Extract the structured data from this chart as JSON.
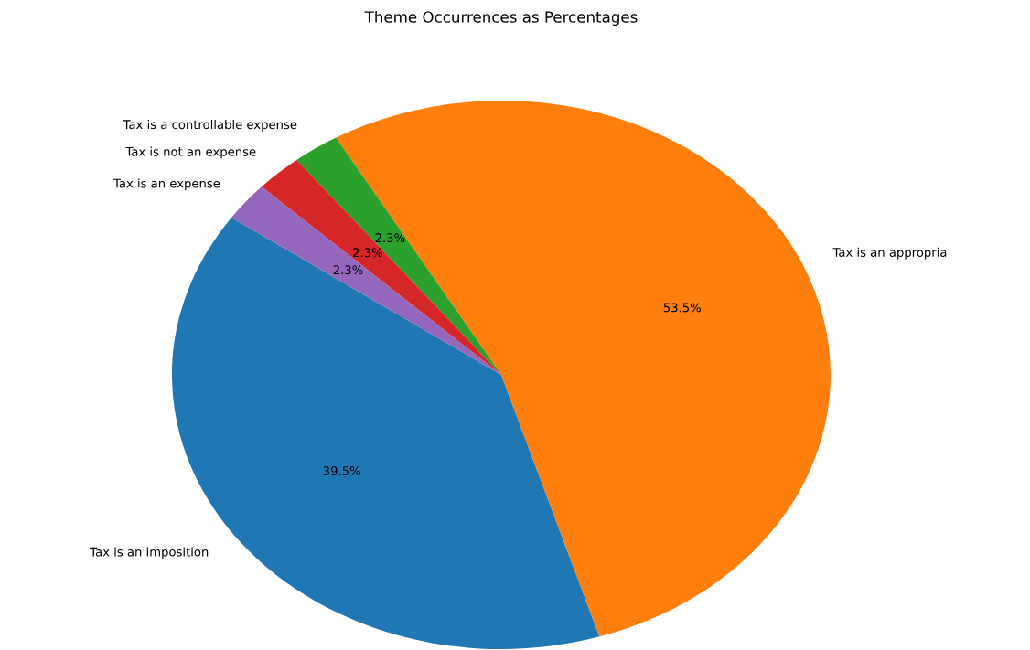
{
  "chart_data": {
    "type": "pie",
    "title": "Theme Occurrences as Percentages",
    "categories": [
      "Tax is an imposition",
      "Tax is an appropria",
      "Tax is a controllable expense",
      "Tax is not an expense",
      "Tax is an expense"
    ],
    "values": [
      39.5,
      53.5,
      2.3,
      2.3,
      2.3
    ],
    "colors": [
      "#1f77b4",
      "#ff7f0e",
      "#2ca02c",
      "#d62728",
      "#9467bd"
    ],
    "value_labels": [
      "39.5%",
      "53.5%",
      "2.3%",
      "2.3%",
      "2.3%"
    ]
  }
}
